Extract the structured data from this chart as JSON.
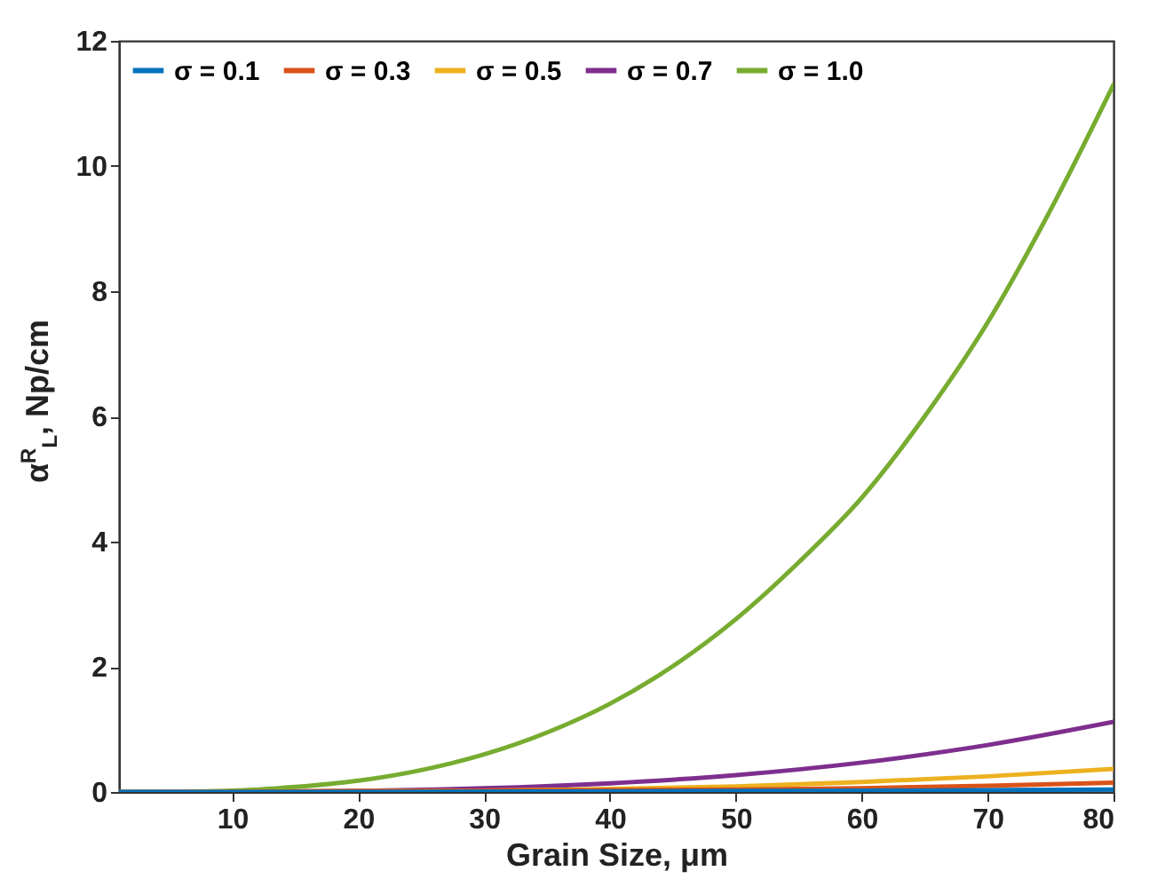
{
  "chart_data": {
    "type": "line",
    "xlabel": "Grain Size, μm",
    "ylabel": "α$^{R}$$_{L}$, Np/cm",
    "series": [
      {
        "name": "σ = 0.1",
        "color": "#0072bd",
        "x": [
          1,
          20,
          40,
          60,
          80
        ],
        "values": [
          0,
          0,
          0.01,
          0.02,
          0.04
        ]
      },
      {
        "name": "σ = 0.3",
        "color": "#d95319",
        "x": [
          1,
          50,
          60,
          70,
          80
        ],
        "values": [
          0,
          0.04,
          0.06,
          0.1,
          0.15
        ]
      },
      {
        "name": "σ = 0.5",
        "color": "#edb120",
        "x": [
          1,
          30,
          40,
          50,
          60,
          70,
          80
        ],
        "values": [
          0,
          0.02,
          0.05,
          0.09,
          0.16,
          0.25,
          0.37
        ]
      },
      {
        "name": "σ = 0.7",
        "color": "#7e2f8e",
        "x": [
          1,
          10,
          20,
          30,
          40,
          50,
          60,
          70,
          80
        ],
        "values": [
          0,
          0,
          0.02,
          0.06,
          0.14,
          0.27,
          0.47,
          0.75,
          1.12
        ]
      },
      {
        "name": "σ = 1.0",
        "color": "#77ac30",
        "x": [
          1,
          10,
          15,
          20,
          25,
          30,
          35,
          40,
          45,
          50,
          55,
          60,
          65,
          70,
          75,
          80
        ],
        "values": [
          0,
          0.02,
          0.08,
          0.18,
          0.35,
          0.6,
          0.95,
          1.41,
          2.01,
          2.76,
          3.67,
          4.7,
          6.0,
          7.5,
          9.3,
          11.3
        ]
      }
    ],
    "xlim": [
      1,
      80
    ],
    "xticks": [
      10,
      20,
      30,
      40,
      50,
      60,
      70,
      80
    ],
    "ylim": [
      0,
      12
    ],
    "yticks": [
      0,
      2,
      4,
      6,
      8,
      10,
      12
    ],
    "legend": "top left",
    "marker": "none",
    "line_style": "solid"
  }
}
